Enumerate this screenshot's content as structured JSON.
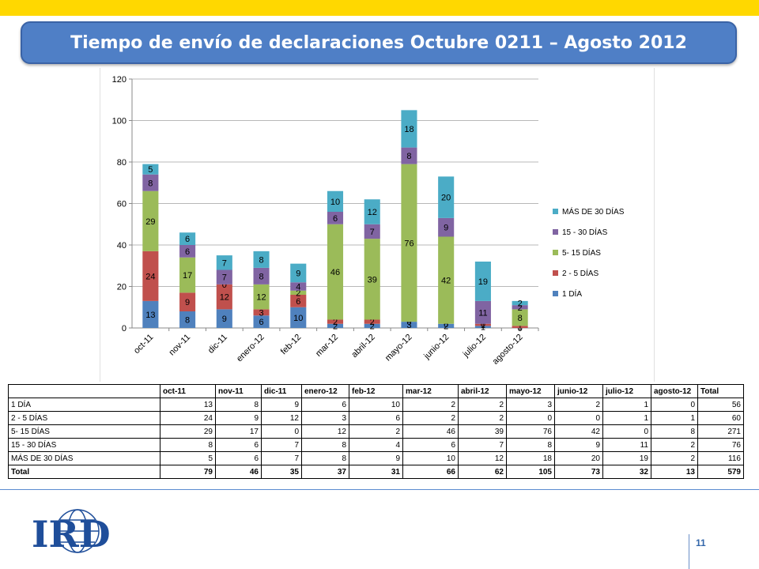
{
  "title": "Tiempo de envío de declaraciones Octubre 0211 – Agosto 2012",
  "page_number": "11",
  "logo_text": "IRD",
  "chart_data": {
    "type": "bar",
    "stacked": true,
    "categories": [
      "oct-11",
      "nov-11",
      "dic-11",
      "enero-12",
      "feb-12",
      "mar-12",
      "abril-12",
      "mayo-12",
      "junio-12",
      "julio-12",
      "agosto-12"
    ],
    "series": [
      {
        "name": "1 DÍA",
        "color": "#4f81bd",
        "values": [
          13,
          8,
          9,
          6,
          10,
          2,
          2,
          3,
          2,
          1,
          0
        ]
      },
      {
        "name": "2 - 5 DÍAS",
        "color": "#c0504d",
        "values": [
          24,
          9,
          12,
          3,
          6,
          2,
          2,
          0,
          0,
          1,
          1
        ]
      },
      {
        "name": "5- 15 DÍAS",
        "color": "#9bbb59",
        "values": [
          29,
          17,
          0,
          12,
          2,
          46,
          39,
          76,
          42,
          0,
          8
        ]
      },
      {
        "name": "15 - 30 DÍAS",
        "color": "#8064a2",
        "values": [
          8,
          6,
          7,
          8,
          4,
          6,
          7,
          8,
          9,
          11,
          2
        ]
      },
      {
        "name": "MÁS DE 30 DÍAS",
        "color": "#4bacc6",
        "values": [
          5,
          6,
          7,
          8,
          9,
          10,
          12,
          18,
          20,
          19,
          2
        ]
      }
    ],
    "ylim": [
      0,
      120
    ],
    "yticks": [
      0,
      20,
      40,
      60,
      80,
      100,
      120
    ],
    "legend_position": "right",
    "grid": true
  },
  "table": {
    "header": [
      "",
      "oct-11",
      "nov-11",
      "dic-11",
      "enero-12",
      "feb-12",
      "mar-12",
      "abril-12",
      "mayo-12",
      "junio-12",
      "julio-12",
      "agosto-12",
      "Total"
    ],
    "rows": [
      [
        "1 DÍA",
        "13",
        "8",
        "9",
        "6",
        "10",
        "2",
        "2",
        "3",
        "2",
        "1",
        "0",
        "56"
      ],
      [
        "2 - 5 DÍAS",
        "24",
        "9",
        "12",
        "3",
        "6",
        "2",
        "2",
        "0",
        "0",
        "1",
        "1",
        "60"
      ],
      [
        "5- 15 DÍAS",
        "29",
        "17",
        "0",
        "12",
        "2",
        "46",
        "39",
        "76",
        "42",
        "0",
        "8",
        "271"
      ],
      [
        "15 - 30 DÍAS",
        "8",
        "6",
        "7",
        "8",
        "4",
        "6",
        "7",
        "8",
        "9",
        "11",
        "2",
        "76"
      ],
      [
        "MÁS DE 30 DÍAS",
        "5",
        "6",
        "7",
        "8",
        "9",
        "10",
        "12",
        "18",
        "20",
        "19",
        "2",
        "116"
      ]
    ],
    "total": [
      "Total",
      "79",
      "46",
      "35",
      "37",
      "31",
      "66",
      "62",
      "105",
      "73",
      "32",
      "13",
      "579"
    ]
  }
}
